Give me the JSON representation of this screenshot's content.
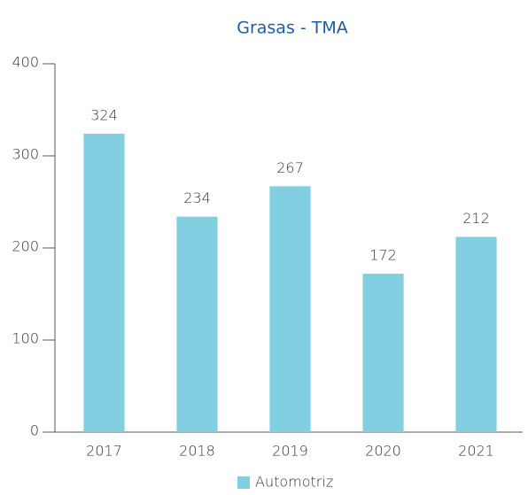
{
  "chart_data": {
    "type": "bar",
    "title": "Grasas - TMA",
    "categories": [
      "2017",
      "2018",
      "2019",
      "2020",
      "2021"
    ],
    "series": [
      {
        "name": "Automotriz",
        "color": "#83cfe2",
        "values": [
          324,
          234,
          267,
          172,
          212
        ]
      }
    ],
    "ylim": [
      0,
      400
    ],
    "yticks": [
      0,
      100,
      200,
      300,
      400
    ],
    "grid": false,
    "legend": "bottom",
    "data_labels": true
  }
}
